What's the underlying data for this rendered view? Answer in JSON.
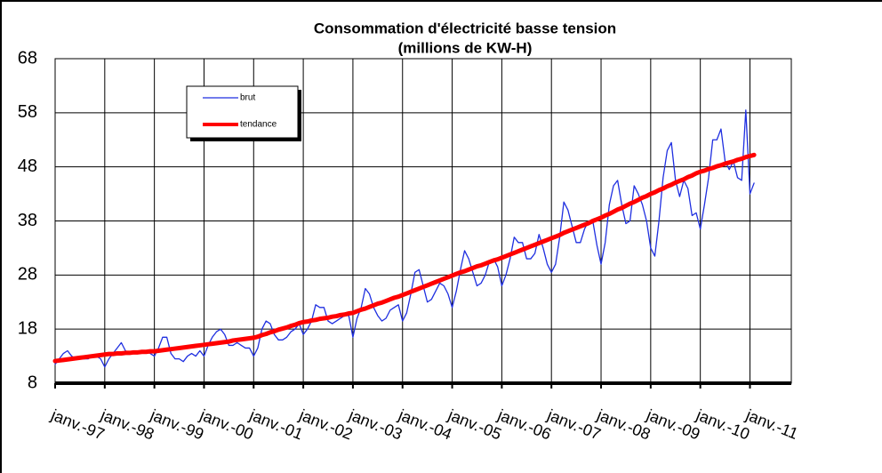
{
  "chart_data": {
    "type": "line",
    "title": "Consommation d'électricité basse tension",
    "subtitle": "(millions de KW-H)",
    "categories": [
      "janv.-97",
      null,
      null,
      null,
      null,
      null,
      null,
      null,
      null,
      null,
      null,
      null,
      "janv.-98",
      null,
      null,
      null,
      null,
      null,
      null,
      null,
      null,
      null,
      null,
      null,
      "janv.-99",
      null,
      null,
      null,
      null,
      null,
      null,
      null,
      null,
      null,
      null,
      null,
      "janv.-00",
      null,
      null,
      null,
      null,
      null,
      null,
      null,
      null,
      null,
      null,
      null,
      "janv.-01",
      null,
      null,
      null,
      null,
      null,
      null,
      null,
      null,
      null,
      null,
      null,
      "janv.-02",
      null,
      null,
      null,
      null,
      null,
      null,
      null,
      null,
      null,
      null,
      null,
      "janv.-03",
      null,
      null,
      null,
      null,
      null,
      null,
      null,
      null,
      null,
      null,
      null,
      "janv.-04",
      null,
      null,
      null,
      null,
      null,
      null,
      null,
      null,
      null,
      null,
      null,
      "janv.-05",
      null,
      null,
      null,
      null,
      null,
      null,
      null,
      null,
      null,
      null,
      null,
      "janv.-06",
      null,
      null,
      null,
      null,
      null,
      null,
      null,
      null,
      null,
      null,
      null,
      "janv.-07",
      null,
      null,
      null,
      null,
      null,
      null,
      null,
      null,
      null,
      null,
      null,
      "janv.-08",
      null,
      null,
      null,
      null,
      null,
      null,
      null,
      null,
      null,
      null,
      null,
      "janv.-09",
      null,
      null,
      null,
      null,
      null,
      null,
      null,
      null,
      null,
      null,
      null,
      "janv.-10",
      null,
      null,
      null,
      null,
      null,
      null,
      null,
      null,
      null,
      null,
      null,
      "janv.-11",
      null
    ],
    "series": [
      {
        "name": "brut",
        "color": "#1f2fe0",
        "width": 1.3,
        "values": [
          11.5,
          12.5,
          13.5,
          14,
          13,
          12.5,
          12.5,
          12.5,
          12.5,
          13,
          13,
          12.5,
          11,
          12.5,
          13.5,
          14.5,
          15.5,
          14,
          13.5,
          13.5,
          13.5,
          14,
          14,
          13.5,
          13,
          14.5,
          16.5,
          16.5,
          13.5,
          12.5,
          12.5,
          12,
          13,
          13.5,
          13,
          14,
          13,
          15,
          16.5,
          17.5,
          18,
          17,
          15,
          15,
          15.5,
          15,
          14.5,
          14.5,
          13,
          14.5,
          18,
          19.5,
          19,
          17,
          16,
          16,
          16.5,
          17.5,
          18,
          19,
          17,
          18,
          19.5,
          22.5,
          22,
          22,
          19.5,
          19,
          19.5,
          20,
          20.5,
          20.5,
          16.5,
          20,
          22,
          25.5,
          24.5,
          22,
          20.5,
          19.5,
          20,
          21.5,
          22,
          22.5,
          19.5,
          21,
          24.5,
          28.5,
          29,
          26,
          23,
          23.5,
          25,
          26.5,
          26,
          24.5,
          22,
          25,
          29,
          32.5,
          31,
          28.5,
          26,
          26.5,
          28,
          30.5,
          31,
          29.5,
          26,
          28,
          31,
          35,
          34,
          34,
          31,
          31,
          32,
          35.5,
          33,
          30,
          28.5,
          30,
          35,
          41.5,
          40,
          37,
          34,
          34,
          36.5,
          38,
          38,
          33.5,
          30,
          34,
          41,
          44.5,
          45.5,
          41,
          37.5,
          38,
          44.5,
          43,
          41,
          38,
          33,
          31.5,
          38,
          46,
          51,
          52.5,
          45.5,
          42.5,
          45.5,
          44,
          39,
          39.5,
          36.5,
          41,
          46,
          53,
          53,
          55,
          49,
          47.5,
          49,
          46,
          45.5,
          58.5,
          43,
          45
        ]
      },
      {
        "name": "tendance",
        "color": "#ff0000",
        "width": 5,
        "values": [
          12.1,
          12.2,
          12.3,
          12.4,
          12.5,
          12.6,
          12.7,
          12.8,
          12.9,
          13.0,
          13.1,
          13.2,
          13.3,
          13.4,
          13.4,
          13.5,
          13.5,
          13.6,
          13.6,
          13.7,
          13.7,
          13.8,
          13.8,
          13.9,
          13.9,
          14.0,
          14.1,
          14.2,
          14.3,
          14.4,
          14.5,
          14.6,
          14.7,
          14.8,
          14.9,
          15.0,
          15.1,
          15.2,
          15.3,
          15.4,
          15.5,
          15.6,
          15.7,
          15.9,
          16.0,
          16.1,
          16.2,
          16.3,
          16.4,
          16.6,
          16.9,
          17.1,
          17.4,
          17.6,
          17.9,
          18.1,
          18.3,
          18.6,
          18.8,
          19.1,
          19.3,
          19.4,
          19.6,
          19.7,
          19.9,
          20.0,
          20.1,
          20.3,
          20.4,
          20.6,
          20.7,
          20.9,
          21.0,
          21.3,
          21.6,
          21.8,
          22.1,
          22.4,
          22.7,
          22.9,
          23.2,
          23.5,
          23.8,
          24.0,
          24.3,
          24.6,
          24.9,
          25.2,
          25.5,
          25.8,
          26.1,
          26.4,
          26.7,
          27.0,
          27.3,
          27.6,
          27.9,
          28.2,
          28.5,
          28.7,
          29.0,
          29.3,
          29.6,
          29.8,
          30.1,
          30.4,
          30.7,
          30.9,
          31.2,
          31.5,
          31.8,
          32.1,
          32.4,
          32.7,
          33.0,
          33.3,
          33.6,
          33.9,
          34.2,
          34.5,
          34.8,
          35.1,
          35.4,
          35.8,
          36.1,
          36.4,
          36.7,
          37.0,
          37.3,
          37.6,
          38.0,
          38.3,
          38.6,
          39.0,
          39.3,
          39.7,
          40.1,
          40.4,
          40.8,
          41.2,
          41.5,
          41.9,
          42.3,
          42.6,
          43.0,
          43.3,
          43.7,
          44.0,
          44.4,
          44.7,
          45.1,
          45.4,
          45.7,
          46.1,
          46.4,
          46.8,
          47.1,
          47.3,
          47.6,
          47.8,
          48.1,
          48.3,
          48.6,
          48.8,
          49.0,
          49.3,
          49.5,
          49.8,
          50.0,
          50.2
        ]
      }
    ],
    "ylim": [
      8,
      68
    ],
    "yticks": [
      8,
      18,
      28,
      38,
      48,
      58,
      68
    ],
    "grid": true,
    "legend": "upper left"
  }
}
